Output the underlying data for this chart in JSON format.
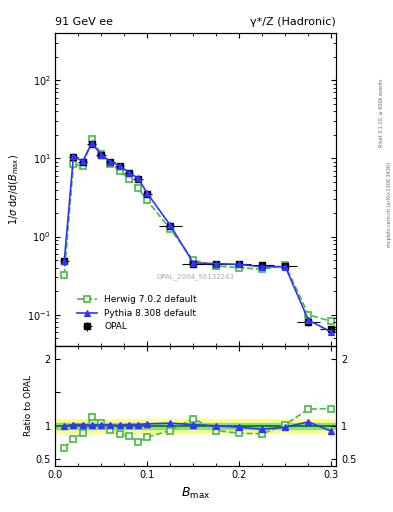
{
  "title_left": "91 GeV ee",
  "title_right": "γ*/Z (Hadronic)",
  "ylabel_main": "1/σ dσ/d(B_{max})",
  "ylabel_ratio": "Ratio to OPAL",
  "xlabel": "B_{max}",
  "watermark": "OPAL_2004_S6132243",
  "right_label": "mcplots.cern.ch [arXiv:1306.3436]",
  "right_label2": "Rivet 3.1.10, ≥ 600k events",
  "opal_x": [
    0.01,
    0.02,
    0.03,
    0.04,
    0.05,
    0.06,
    0.07,
    0.08,
    0.09,
    0.1,
    0.125,
    0.15,
    0.175,
    0.2,
    0.225,
    0.25,
    0.275,
    0.3
  ],
  "opal_y": [
    0.48,
    10.5,
    9.0,
    15.5,
    11.0,
    9.0,
    8.0,
    6.5,
    5.5,
    3.5,
    1.35,
    0.45,
    0.45,
    0.45,
    0.43,
    0.42,
    0.08,
    0.065
  ],
  "opal_xerr": [
    0.005,
    0.005,
    0.005,
    0.005,
    0.005,
    0.005,
    0.005,
    0.005,
    0.005,
    0.005,
    0.0125,
    0.0125,
    0.0125,
    0.0125,
    0.0125,
    0.0125,
    0.0125,
    0.0125
  ],
  "opal_yerr": [
    0.05,
    0.5,
    0.5,
    0.8,
    0.5,
    0.4,
    0.3,
    0.3,
    0.2,
    0.15,
    0.08,
    0.04,
    0.03,
    0.03,
    0.03,
    0.03,
    0.008,
    0.007
  ],
  "herwig_x": [
    0.01,
    0.02,
    0.03,
    0.04,
    0.05,
    0.06,
    0.07,
    0.08,
    0.09,
    0.1,
    0.125,
    0.15,
    0.175,
    0.2,
    0.225,
    0.25,
    0.275,
    0.3
  ],
  "herwig_y": [
    0.32,
    8.5,
    8.0,
    17.5,
    11.5,
    8.5,
    7.0,
    5.5,
    4.2,
    2.9,
    1.25,
    0.5,
    0.42,
    0.4,
    0.38,
    0.43,
    0.1,
    0.082
  ],
  "pythia_x": [
    0.01,
    0.02,
    0.03,
    0.04,
    0.05,
    0.06,
    0.07,
    0.08,
    0.09,
    0.1,
    0.125,
    0.15,
    0.175,
    0.2,
    0.225,
    0.25,
    0.275,
    0.3
  ],
  "pythia_y": [
    0.48,
    10.7,
    9.2,
    15.7,
    11.2,
    9.1,
    8.1,
    6.6,
    5.6,
    3.6,
    1.4,
    0.46,
    0.45,
    0.44,
    0.41,
    0.41,
    0.085,
    0.06
  ],
  "opal_color": "#000000",
  "herwig_color": "#44bb44",
  "pythia_color": "#3333ff",
  "band_yellow": "#ffff88",
  "band_green": "#88dd88",
  "ratio_herwig": [
    0.67,
    0.81,
    0.89,
    1.13,
    1.05,
    0.94,
    0.875,
    0.85,
    0.76,
    0.83,
    0.93,
    1.11,
    0.93,
    0.89,
    0.88,
    1.02,
    1.25,
    1.26
  ],
  "ratio_pythia": [
    1.0,
    1.02,
    1.02,
    1.01,
    1.02,
    1.01,
    1.01,
    1.02,
    1.02,
    1.03,
    1.04,
    1.02,
    1.0,
    0.98,
    0.95,
    0.98,
    1.06,
    0.92
  ],
  "ylim_main": [
    0.04,
    400
  ],
  "ylim_ratio": [
    0.4,
    2.2
  ],
  "xlim": [
    0.0,
    0.305
  ],
  "band_yellow_lo": 0.9,
  "band_yellow_hi": 1.1,
  "band_green_lo": 0.96,
  "band_green_hi": 1.04
}
